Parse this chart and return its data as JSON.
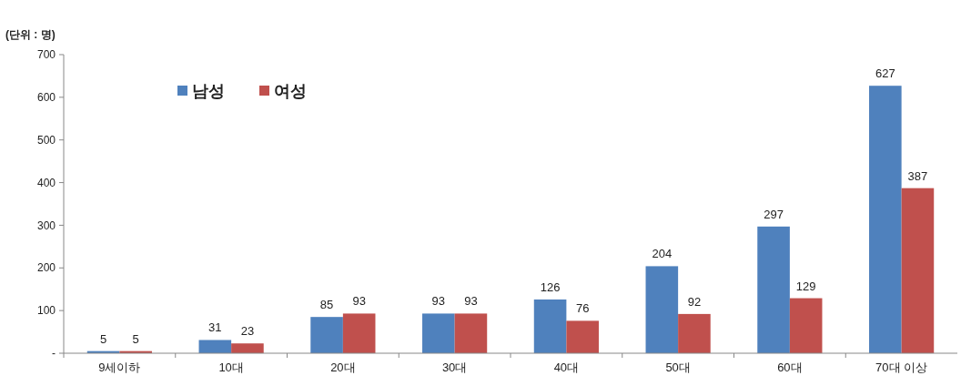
{
  "chart_data": {
    "type": "bar",
    "ylabel": "(단위 : 명)",
    "categories": [
      "9세이하",
      "10대",
      "20대",
      "30대",
      "40대",
      "50대",
      "60대",
      "70대 이상"
    ],
    "series": [
      {
        "name": "남성",
        "color": "#4f81bd",
        "values": [
          5,
          31,
          85,
          93,
          126,
          204,
          297,
          627
        ]
      },
      {
        "name": "여성",
        "color": "#c0504d",
        "values": [
          5,
          23,
          93,
          93,
          76,
          92,
          129,
          387
        ]
      }
    ],
    "ylim": [
      0,
      700
    ],
    "yticks": [
      {
        "value": 0,
        "label": "-"
      },
      100,
      200,
      300,
      400,
      500,
      600,
      700
    ],
    "data_labels": true,
    "legend": "top left",
    "grid": false
  }
}
